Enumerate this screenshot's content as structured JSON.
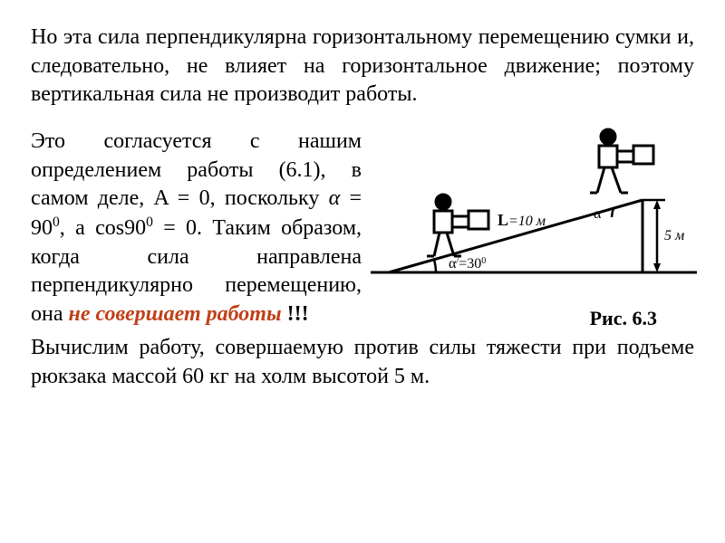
{
  "para1": "Но эта сила перпендикулярна горизонтальному перемещению сумки и, следовательно, не влияет на горизонтальное движение; поэтому вертикальная сила не производит работы.",
  "para2_html": "Это согласуется с нашим определением работы (6.1), в самом деле, A = 0, поскольку <i>α</i> = 90<sup>0</sup>, а cos90<sup>0</sup> = 0. Таким образом, когда сила направлена перпендикулярно перемещению, она <span class=\"nowork\">не совершает работы</span> <span class=\"excl\">!!!</span>",
  "para3": "Вычислим работу, совершаемую против силы тяжести при подъеме рюкзака массой 60 кг на холм высотой 5 м.",
  "figure": {
    "caption": "Рис. 6.3",
    "L_label": "L",
    "L_value_html": "=10 м",
    "alpha_label_html": "α<tspan font-style=\"italic\" baseline-shift=\"super\" font-size=\"10\">/</tspan>=30<tspan baseline-shift=\"super\" font-size=\"10\">0</tspan>",
    "alpha_top_label": "α",
    "height_label_html": "5 м",
    "stroke": "#000000",
    "stroke_width": 3
  }
}
